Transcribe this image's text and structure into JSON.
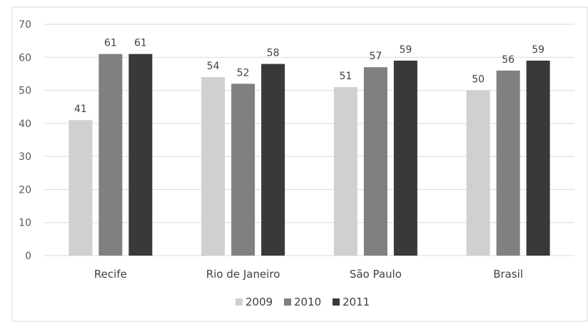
{
  "chart_data": {
    "type": "bar",
    "categories": [
      "Recife",
      "Rio de Janeiro",
      "São Paulo",
      "Brasil"
    ],
    "series": [
      {
        "name": "2009",
        "values": [
          41,
          54,
          51,
          50
        ],
        "color": "#d0d0d0"
      },
      {
        "name": "2010",
        "values": [
          61,
          52,
          57,
          56
        ],
        "color": "#7f8080"
      },
      {
        "name": "2011",
        "values": [
          61,
          58,
          59,
          59
        ],
        "color": "#3a383b"
      }
    ],
    "yticks": [
      0,
      10,
      20,
      30,
      40,
      50,
      60,
      70
    ],
    "ylim": [
      0,
      70
    ],
    "grid": true,
    "data_labels": true,
    "legend_position": "bottom",
    "title": "",
    "xlabel": "",
    "ylabel": ""
  }
}
